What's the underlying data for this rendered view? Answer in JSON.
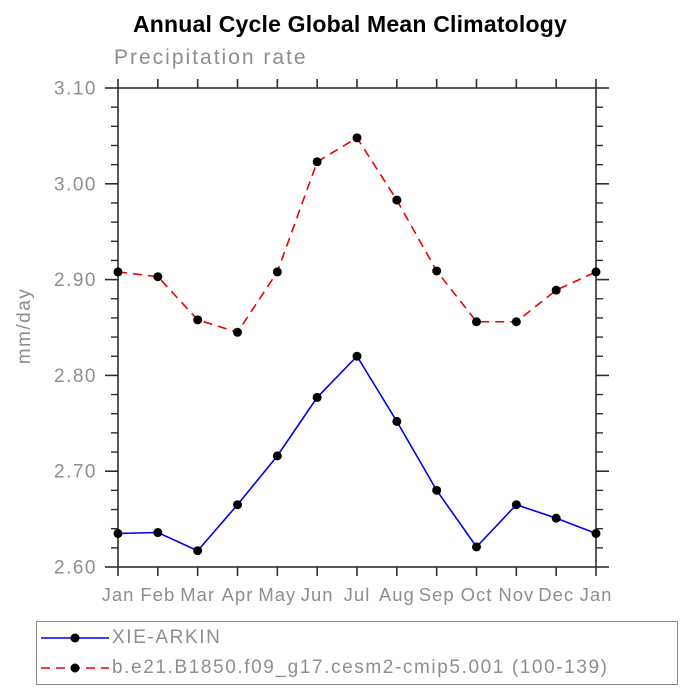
{
  "chart_data": {
    "type": "line",
    "title": "Annual Cycle Global Mean Climatology",
    "subtitle": "Precipitation rate",
    "ylabel": "mm/day",
    "xlabel": "",
    "categories": [
      "Jan",
      "Feb",
      "Mar",
      "Apr",
      "May",
      "Jun",
      "Jul",
      "Aug",
      "Sep",
      "Oct",
      "Nov",
      "Dec",
      "Jan"
    ],
    "ylim": [
      2.6,
      3.1
    ],
    "y_ticks": [
      2.6,
      2.7,
      2.8,
      2.9,
      3.0,
      3.1
    ],
    "y_tick_labels": [
      "2.60",
      "2.70",
      "2.80",
      "2.90",
      "3.00",
      "3.10"
    ],
    "y_minor_step": 0.02,
    "grid": false,
    "legend_position": "bottom-left",
    "series": [
      {
        "name": "XIE-ARKIN",
        "color": "#0000ee",
        "line_style": "solid",
        "marker": "filled-circle",
        "marker_color": "#000000",
        "values": [
          2.635,
          2.636,
          2.617,
          2.665,
          2.716,
          2.777,
          2.82,
          2.752,
          2.68,
          2.621,
          2.665,
          2.651,
          2.635
        ]
      },
      {
        "name": "b.e21.B1850.f09_g17.cesm2-cmip5.001 (100-139)",
        "color": "#ee0000",
        "line_style": "dashed",
        "marker": "filled-circle",
        "marker_color": "#000000",
        "values": [
          2.908,
          2.903,
          2.858,
          2.845,
          2.908,
          3.023,
          3.048,
          2.983,
          2.909,
          2.856,
          2.856,
          2.889,
          2.908
        ]
      }
    ],
    "axis_color": "#2f2f2f",
    "text_color": "#8e8e8e"
  }
}
